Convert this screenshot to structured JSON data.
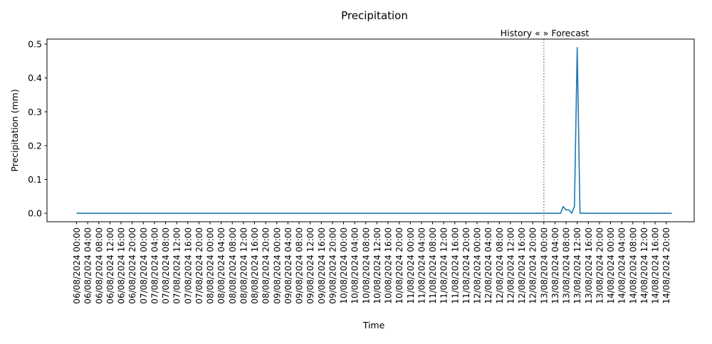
{
  "chart_data": {
    "type": "line",
    "title": "Precipitation",
    "xlabel": "Time",
    "ylabel": "Precipitation (mm)",
    "ylim": [
      -0.025,
      0.515
    ],
    "yticks": [
      0.0,
      0.1,
      0.2,
      0.3,
      0.4,
      0.5
    ],
    "ytick_labels": [
      "0.0",
      "0.1",
      "0.2",
      "0.3",
      "0.4",
      "0.5"
    ],
    "xticks": [
      "06/08/2024 00:00",
      "06/08/2024 04:00",
      "06/08/2024 08:00",
      "06/08/2024 12:00",
      "06/08/2024 16:00",
      "06/08/2024 20:00",
      "07/08/2024 00:00",
      "07/08/2024 04:00",
      "07/08/2024 08:00",
      "07/08/2024 12:00",
      "07/08/2024 16:00",
      "07/08/2024 20:00",
      "08/08/2024 00:00",
      "08/08/2024 04:00",
      "08/08/2024 08:00",
      "08/08/2024 12:00",
      "08/08/2024 16:00",
      "08/08/2024 20:00",
      "09/08/2024 00:00",
      "09/08/2024 04:00",
      "09/08/2024 08:00",
      "09/08/2024 12:00",
      "09/08/2024 16:00",
      "09/08/2024 20:00",
      "10/08/2024 00:00",
      "10/08/2024 04:00",
      "10/08/2024 08:00",
      "10/08/2024 12:00",
      "10/08/2024 16:00",
      "10/08/2024 20:00",
      "11/08/2024 00:00",
      "11/08/2024 04:00",
      "11/08/2024 08:00",
      "11/08/2024 12:00",
      "11/08/2024 16:00",
      "11/08/2024 20:00",
      "12/08/2024 00:00",
      "12/08/2024 04:00",
      "12/08/2024 08:00",
      "12/08/2024 12:00",
      "12/08/2024 16:00",
      "12/08/2024 20:00",
      "13/08/2024 00:00",
      "13/08/2024 04:00",
      "13/08/2024 08:00",
      "13/08/2024 12:00",
      "13/08/2024 16:00",
      "13/08/2024 20:00",
      "14/08/2024 00:00",
      "14/08/2024 04:00",
      "14/08/2024 08:00",
      "14/08/2024 12:00",
      "14/08/2024 16:00",
      "14/08/2024 20:00"
    ],
    "x_range": [
      "06/08/2024 00:00",
      "14/08/2024 22:00"
    ],
    "series": [
      {
        "color": "#1f77b4",
        "points": [
          {
            "x": "06/08/2024 00:00",
            "y": 0.0
          },
          {
            "x": "13/08/2024 06:00",
            "y": 0.0
          },
          {
            "x": "13/08/2024 07:00",
            "y": 0.02
          },
          {
            "x": "13/08/2024 08:00",
            "y": 0.01
          },
          {
            "x": "13/08/2024 09:00",
            "y": 0.01
          },
          {
            "x": "13/08/2024 10:00",
            "y": 0.0
          },
          {
            "x": "13/08/2024 11:00",
            "y": 0.02
          },
          {
            "x": "13/08/2024 12:00",
            "y": 0.49
          },
          {
            "x": "13/08/2024 13:00",
            "y": 0.0
          },
          {
            "x": "14/08/2024 22:00",
            "y": 0.0
          }
        ]
      }
    ],
    "divider": {
      "x": "13/08/2024 00:00",
      "label": "History «  » Forecast",
      "color": "#808080",
      "style": "dotted"
    },
    "grid": false,
    "legend": "none"
  }
}
